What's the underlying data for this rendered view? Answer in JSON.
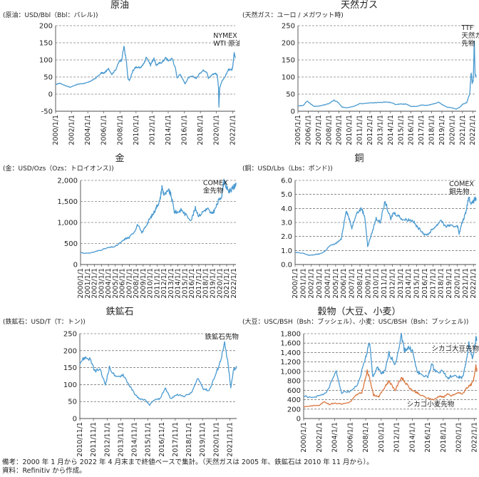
{
  "footer": {
    "note": "備考：2000 年 1 月から 2022 年 4 月末まで終値ベースで集計。（天然ガスは 2005 年、鉄鉱石は 2010 年 11 月から）。",
    "source": "資料：Refinitiv から作成。"
  },
  "colors": {
    "blue": "#4a9ad0",
    "orange": "#d9773f",
    "grid": "#444444"
  },
  "chart_data": [
    {
      "id": "crude",
      "type": "line",
      "title": "原油",
      "unit_label": "(原油：USD/Bbl（Bbl：バレル))",
      "ylim": [
        -50,
        200
      ],
      "yticks": [
        -50,
        0,
        50,
        100,
        150,
        200
      ],
      "ytick_labels": [
        "-50",
        "0",
        "50",
        "100",
        "150",
        "200"
      ],
      "xlim": [
        2000.0,
        2022.33
      ],
      "xticks": [
        2000,
        2002,
        2004,
        2006,
        2008,
        2010,
        2012,
        2014,
        2016,
        2018,
        2020,
        2022
      ],
      "xtick_labels": [
        "2000/1/1",
        "2002/1/1",
        "2004/1/1",
        "2006/1/1",
        "2008/1/1",
        "2010/1/1",
        "2012/1/1",
        "2014/1/1",
        "2016/1/1",
        "2018/1/1",
        "2020/1/1",
        "2022/1/1"
      ],
      "annotations": [
        {
          "lines": [
            "NYMEX",
            "WTI 原油先物"
          ],
          "x": 2019.6,
          "y": 165
        }
      ],
      "series": [
        {
          "color": "#4a9ad0",
          "x": [
            2000.0,
            2000.5,
            2001.0,
            2001.8,
            2002.5,
            2003.0,
            2003.5,
            2004.0,
            2004.5,
            2005.0,
            2005.7,
            2006.0,
            2006.6,
            2007.0,
            2007.5,
            2007.9,
            2008.2,
            2008.5,
            2008.8,
            2009.0,
            2009.2,
            2009.6,
            2010.0,
            2010.5,
            2011.0,
            2011.3,
            2011.8,
            2012.2,
            2012.5,
            2012.9,
            2013.3,
            2013.7,
            2014.0,
            2014.5,
            2014.9,
            2015.1,
            2015.5,
            2015.9,
            2016.1,
            2016.5,
            2017.0,
            2017.5,
            2018.0,
            2018.4,
            2018.8,
            2019.0,
            2019.5,
            2019.9,
            2020.1,
            2020.25,
            2020.3,
            2020.4,
            2020.7,
            2021.0,
            2021.5,
            2021.9,
            2022.0,
            2022.2,
            2022.33
          ],
          "y": [
            28,
            32,
            27,
            20,
            27,
            30,
            31,
            34,
            40,
            47,
            62,
            61,
            74,
            58,
            73,
            95,
            100,
            140,
            95,
            44,
            40,
            68,
            80,
            76,
            90,
            110,
            85,
            105,
            85,
            90,
            95,
            106,
            98,
            104,
            75,
            48,
            58,
            40,
            30,
            48,
            52,
            46,
            63,
            70,
            65,
            46,
            58,
            61,
            55,
            20,
            -37,
            18,
            40,
            48,
            72,
            70,
            78,
            120,
            105
          ]
        }
      ]
    },
    {
      "id": "gas",
      "type": "line",
      "title": "天然ガス",
      "unit_label": "(天然ガス：ユーロ / メガワット時)",
      "ylim": [
        0,
        250
      ],
      "yticks": [
        0,
        50,
        100,
        150,
        200,
        250
      ],
      "ytick_labels": [
        "0",
        "50",
        "100",
        "150",
        "200",
        "250"
      ],
      "xlim": [
        2005.0,
        2022.33
      ],
      "xticks": [
        2005,
        2006,
        2007,
        2008,
        2009,
        2010,
        2011,
        2012,
        2013,
        2014,
        2015,
        2016,
        2017,
        2018,
        2019,
        2020,
        2021,
        2022
      ],
      "xtick_labels": [
        "2005/1/1",
        "2006/1/1",
        "2007/1/1",
        "2008/1/1",
        "2009/1/1",
        "2010/1/1",
        "2011/1/1",
        "2012/1/1",
        "2013/1/1",
        "2014/1/1",
        "2015/1/1",
        "2016/1/1",
        "2017/1/1",
        "2018/1/1",
        "2019/1/1",
        "2020/1/1",
        "2021/1/1",
        "2022/1/1"
      ],
      "annotations": [
        {
          "lines": [
            "TTF",
            "天然ガス",
            "先物"
          ],
          "x": 2020.9,
          "y": 238
        }
      ],
      "series": [
        {
          "color": "#4a9ad0",
          "x": [
            2005.0,
            2005.5,
            2005.9,
            2006.2,
            2006.6,
            2007.0,
            2007.5,
            2008.0,
            2008.5,
            2008.9,
            2009.3,
            2009.8,
            2010.5,
            2011.0,
            2011.5,
            2012.0,
            2012.5,
            2013.0,
            2013.5,
            2014.0,
            2014.5,
            2015.0,
            2015.5,
            2016.0,
            2016.5,
            2017.0,
            2017.5,
            2018.0,
            2018.7,
            2019.0,
            2019.5,
            2020.0,
            2020.4,
            2020.8,
            2021.0,
            2021.4,
            2021.7,
            2021.85,
            2021.95,
            2022.05,
            2022.15,
            2022.22,
            2022.33
          ],
          "y": [
            15,
            17,
            30,
            22,
            14,
            15,
            18,
            22,
            32,
            26,
            12,
            10,
            15,
            22,
            23,
            24,
            25,
            26,
            27,
            26,
            20,
            21,
            21,
            14,
            14,
            18,
            17,
            20,
            26,
            20,
            12,
            10,
            6,
            13,
            20,
            25,
            50,
            115,
            80,
            90,
            210,
            110,
            100
          ]
        }
      ]
    },
    {
      "id": "gold",
      "type": "line",
      "title": "金",
      "unit_label": "(金：USD/Ozs（Ozs：トロイオンス))",
      "ylim": [
        0,
        2000
      ],
      "yticks": [
        0,
        500,
        1000,
        1500,
        2000
      ],
      "ytick_labels": [
        "0",
        "500",
        "1,000",
        "1,500",
        "2,000"
      ],
      "xlim": [
        2000.0,
        2022.33
      ],
      "xticks": [
        2000,
        2001,
        2002,
        2003,
        2004,
        2005,
        2006,
        2007,
        2008,
        2009,
        2010,
        2011,
        2012,
        2013,
        2014,
        2015,
        2016,
        2017,
        2018,
        2019,
        2020,
        2021,
        2022
      ],
      "xtick_labels": [
        "2000/1/1",
        "2001/1/1",
        "2002/1/1",
        "2003/1/1",
        "2004/1/1",
        "2005/1/1",
        "2006/1/1",
        "2007/1/1",
        "2008/1/1",
        "2009/1/1",
        "2010/1/1",
        "2011/1/1",
        "2012/1/1",
        "2013/1/1",
        "2014/1/1",
        "2015/1/1",
        "2016/1/1",
        "2017/1/1",
        "2018/1/1",
        "2019/1/1",
        "2020/1/1",
        "2021/1/1",
        "2022/1/1"
      ],
      "annotations": [
        {
          "lines": [
            "COMEX",
            "金先物"
          ],
          "x": 2017.6,
          "y": 1890
        }
      ],
      "series": [
        {
          "color": "#4a9ad0",
          "x": [
            2000.0,
            2001.0,
            2002.0,
            2003.0,
            2004.0,
            2005.0,
            2006.0,
            2006.5,
            2007.0,
            2007.8,
            2008.2,
            2008.8,
            2009.5,
            2010.0,
            2010.5,
            2011.0,
            2011.4,
            2011.7,
            2012.0,
            2012.7,
            2013.0,
            2013.5,
            2014.0,
            2014.5,
            2015.0,
            2015.9,
            2016.5,
            2017.0,
            2017.8,
            2018.3,
            2018.8,
            2019.3,
            2019.8,
            2020.3,
            2020.6,
            2020.9,
            2021.3,
            2021.8,
            2022.1,
            2022.33
          ],
          "y": [
            285,
            265,
            300,
            350,
            400,
            430,
            550,
            620,
            640,
            800,
            950,
            750,
            950,
            1100,
            1220,
            1400,
            1520,
            1850,
            1650,
            1750,
            1650,
            1250,
            1250,
            1300,
            1200,
            1060,
            1340,
            1150,
            1290,
            1320,
            1200,
            1300,
            1500,
            1650,
            2000,
            1850,
            1750,
            1800,
            1850,
            1950
          ]
        }
      ]
    },
    {
      "id": "copper",
      "type": "line",
      "title": "銅",
      "unit_label": "(銅：USD/Lbs（Lbs：ポンド))",
      "ylim": [
        0,
        6
      ],
      "yticks": [
        0,
        1,
        2,
        3,
        4,
        5,
        6
      ],
      "ytick_labels": [
        "0.0",
        "1.0",
        "2.0",
        "3.0",
        "4.0",
        "5.0",
        "6.0"
      ],
      "xlim": [
        2000.0,
        2022.33
      ],
      "xticks": [
        2000,
        2001,
        2002,
        2003,
        2004,
        2005,
        2006,
        2007,
        2008,
        2009,
        2010,
        2011,
        2012,
        2013,
        2014,
        2015,
        2016,
        2017,
        2018,
        2019,
        2020,
        2021,
        2022
      ],
      "xtick_labels": [
        "2000/1/1",
        "2001/1/1",
        "2002/1/1",
        "2003/1/1",
        "2004/1/1",
        "2005/1/1",
        "2006/1/1",
        "2007/1/1",
        "2008/1/1",
        "2009/1/1",
        "2010/1/1",
        "2011/1/1",
        "2012/1/1",
        "2013/1/1",
        "2014/1/1",
        "2015/1/1",
        "2016/1/1",
        "2017/1/1",
        "2018/1/1",
        "2019/1/1",
        "2020/1/1",
        "2021/1/1",
        "2022/1/1"
      ],
      "annotations": [
        {
          "lines": [
            "COMEX",
            "銅先物"
          ],
          "x": 2019.0,
          "y": 5.6
        }
      ],
      "series": [
        {
          "color": "#4a9ad0",
          "x": [
            2000.0,
            2001.0,
            2001.8,
            2002.5,
            2003.0,
            2003.7,
            2004.2,
            2005.0,
            2005.7,
            2006.3,
            2006.6,
            2007.0,
            2007.5,
            2008.2,
            2008.6,
            2008.95,
            2009.5,
            2010.0,
            2010.5,
            2011.1,
            2011.8,
            2012.1,
            2012.7,
            2013.3,
            2014.0,
            2014.6,
            2015.0,
            2015.6,
            2016.0,
            2016.5,
            2016.9,
            2017.5,
            2018.0,
            2018.5,
            2019.0,
            2019.5,
            2020.0,
            2020.25,
            2020.6,
            2021.0,
            2021.4,
            2021.8,
            2022.2,
            2022.33
          ],
          "y": [
            0.85,
            0.8,
            0.65,
            0.72,
            0.75,
            0.95,
            1.3,
            1.5,
            1.8,
            3.9,
            3.4,
            2.6,
            3.6,
            4.0,
            3.4,
            1.3,
            2.3,
            3.3,
            3.0,
            4.5,
            3.2,
            3.7,
            3.5,
            3.2,
            3.2,
            3.1,
            2.7,
            2.4,
            2.1,
            2.2,
            2.5,
            2.8,
            3.2,
            2.7,
            2.8,
            2.7,
            2.8,
            2.2,
            3.0,
            3.6,
            4.8,
            4.3,
            4.7,
            4.6
          ]
        }
      ]
    },
    {
      "id": "ironore",
      "type": "line",
      "title": "鉄鉱石",
      "unit_label": "(鉄鉱石：USD/T（T：トン))",
      "ylim": [
        0,
        250
      ],
      "yticks": [
        0,
        50,
        100,
        150,
        200,
        250
      ],
      "ytick_labels": [
        "0",
        "50",
        "100",
        "150",
        "200",
        "250"
      ],
      "xlim": [
        2010.83,
        2022.33
      ],
      "xticks": [
        2010.83,
        2011.83,
        2012.83,
        2013.83,
        2014.83,
        2015.83,
        2016.83,
        2017.83,
        2018.83,
        2019.83,
        2020.83,
        2021.83
      ],
      "xtick_labels": [
        "2010/11/1",
        "2011/11/1",
        "2012/11/1",
        "2013/11/1",
        "2014/11/1",
        "2015/11/1",
        "2016/11/1",
        "2017/11/1",
        "2018/11/1",
        "2019/11/1",
        "2020/11/1",
        "2021/11/1"
      ],
      "annotations": [
        {
          "lines": [
            "鉄鉱石先物"
          ],
          "x": 2020.0,
          "y": 234
        }
      ],
      "series": [
        {
          "color": "#4a9ad0",
          "x": [
            2010.83,
            2011.2,
            2011.6,
            2011.9,
            2012.3,
            2012.7,
            2013.0,
            2013.5,
            2014.0,
            2014.5,
            2014.9,
            2015.2,
            2015.6,
            2015.95,
            2016.3,
            2016.7,
            2017.1,
            2017.5,
            2017.9,
            2018.5,
            2019.0,
            2019.5,
            2019.9,
            2020.3,
            2020.8,
            2021.1,
            2021.45,
            2021.7,
            2021.9,
            2022.1,
            2022.33
          ],
          "y": [
            165,
            180,
            175,
            140,
            145,
            100,
            150,
            120,
            130,
            95,
            70,
            58,
            55,
            40,
            55,
            58,
            90,
            58,
            70,
            66,
            75,
            118,
            88,
            82,
            130,
            165,
            220,
            160,
            90,
            145,
            150
          ]
        }
      ]
    },
    {
      "id": "grains",
      "type": "line",
      "title": "穀物（大豆、小麦）",
      "unit_label": "(大豆：USC/BSH（Bsh：ブッシェル）、小麦：USC/BSH（Bsh：ブッシェル))",
      "ylim": [
        0,
        1800
      ],
      "yticks": [
        0,
        200,
        400,
        600,
        800,
        1000,
        1200,
        1400,
        1600,
        1800
      ],
      "ytick_labels": [
        "0",
        "200",
        "400",
        "600",
        "800",
        "1,000",
        "1,200",
        "1,400",
        "1,600",
        "1,800"
      ],
      "xlim": [
        2000.0,
        2022.33
      ],
      "xticks": [
        2000,
        2002,
        2004,
        2006,
        2008,
        2010,
        2012,
        2014,
        2016,
        2018,
        2020,
        2022
      ],
      "xtick_labels": [
        "2000/1/1",
        "2002/1/1",
        "2004/1/1",
        "2006/1/1",
        "2008/1/1",
        "2010/1/1",
        "2012/1/1",
        "2014/1/1",
        "2016/1/1",
        "2018/1/1",
        "2020/1/1",
        "2022/1/1"
      ],
      "annotations": [
        {
          "lines": [
            "シカゴ大豆先物"
          ],
          "x": 2016.5,
          "y": 1440
        },
        {
          "lines": [
            "シカゴ小麦先物"
          ],
          "x": 2013.3,
          "y": 260
        }
      ],
      "series": [
        {
          "color": "#4a9ad0",
          "x": [
            2000.0,
            2001.0,
            2002.0,
            2003.0,
            2004.2,
            2004.9,
            2006.0,
            2007.0,
            2008.0,
            2008.5,
            2008.9,
            2009.5,
            2010.0,
            2010.5,
            2011.0,
            2011.8,
            2012.6,
            2013.0,
            2013.5,
            2014.0,
            2014.6,
            2015.0,
            2016.0,
            2016.5,
            2017.0,
            2018.0,
            2018.6,
            2019.0,
            2020.0,
            2020.5,
            2020.9,
            2021.3,
            2021.8,
            2022.2,
            2022.33
          ],
          "y": [
            480,
            440,
            480,
            560,
            1000,
            550,
            580,
            720,
            1300,
            1630,
            870,
            1100,
            950,
            1000,
            1380,
            1150,
            1760,
            1450,
            1500,
            1450,
            1000,
            950,
            870,
            1150,
            1000,
            1000,
            840,
            900,
            880,
            870,
            1150,
            1600,
            1250,
            1700,
            1680
          ]
        },
        {
          "color": "#d9773f",
          "x": [
            2000.0,
            2001.0,
            2002.0,
            2002.7,
            2003.3,
            2004.0,
            2005.0,
            2006.0,
            2006.8,
            2007.5,
            2008.2,
            2008.6,
            2009.0,
            2009.7,
            2010.6,
            2011.0,
            2011.8,
            2012.6,
            2013.0,
            2013.8,
            2014.5,
            2015.0,
            2016.0,
            2016.8,
            2017.5,
            2018.0,
            2018.5,
            2019.0,
            2020.0,
            2020.5,
            2021.0,
            2021.5,
            2021.9,
            2022.2,
            2022.33
          ],
          "y": [
            250,
            270,
            280,
            360,
            300,
            330,
            310,
            350,
            500,
            550,
            1000,
            800,
            500,
            470,
            700,
            800,
            600,
            880,
            780,
            620,
            560,
            500,
            430,
            400,
            480,
            450,
            520,
            480,
            550,
            520,
            650,
            700,
            800,
            1150,
            1000
          ]
        }
      ]
    }
  ]
}
